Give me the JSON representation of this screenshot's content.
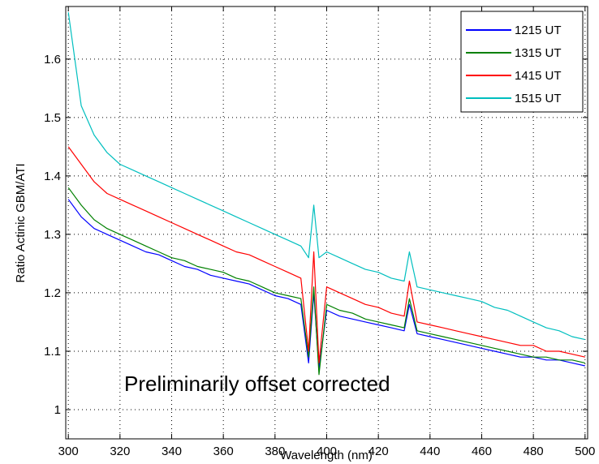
{
  "chart_data": {
    "type": "line",
    "xlabel": "Wavelength (nm)",
    "ylabel": "Ratio Actinic GBM/ATI",
    "xlim": [
      299,
      501
    ],
    "ylim": [
      0.95,
      1.69
    ],
    "x_ticks": [
      "300",
      "320",
      "340",
      "360",
      "380",
      "400",
      "420",
      "440",
      "460",
      "480",
      "500"
    ],
    "y_ticks": [
      "1",
      "1.1",
      "1.2",
      "1.3",
      "1.4",
      "1.5",
      "1.6"
    ],
    "grid": true,
    "legend_position": "top-right",
    "annotation": "Preliminarily offset corrected",
    "x": [
      300,
      305,
      310,
      315,
      320,
      325,
      330,
      335,
      340,
      345,
      350,
      355,
      360,
      365,
      370,
      375,
      380,
      385,
      390,
      393,
      395,
      397,
      400,
      405,
      410,
      415,
      420,
      425,
      430,
      432,
      435,
      440,
      445,
      450,
      455,
      460,
      465,
      470,
      475,
      480,
      485,
      490,
      495,
      500
    ],
    "series": [
      {
        "name": "1215 UT",
        "color": "#0000ff",
        "values": [
          1.36,
          1.33,
          1.31,
          1.3,
          1.29,
          1.28,
          1.27,
          1.265,
          1.255,
          1.245,
          1.24,
          1.23,
          1.225,
          1.22,
          1.215,
          1.205,
          1.195,
          1.19,
          1.18,
          1.08,
          1.2,
          1.07,
          1.17,
          1.16,
          1.155,
          1.15,
          1.145,
          1.14,
          1.135,
          1.18,
          1.13,
          1.125,
          1.12,
          1.115,
          1.11,
          1.105,
          1.1,
          1.095,
          1.09,
          1.09,
          1.085,
          1.085,
          1.08,
          1.075
        ]
      },
      {
        "name": "1315 UT",
        "color": "#008000",
        "values": [
          1.38,
          1.35,
          1.325,
          1.31,
          1.3,
          1.29,
          1.28,
          1.27,
          1.26,
          1.255,
          1.245,
          1.24,
          1.235,
          1.225,
          1.22,
          1.21,
          1.2,
          1.195,
          1.19,
          1.09,
          1.21,
          1.06,
          1.18,
          1.17,
          1.165,
          1.155,
          1.15,
          1.145,
          1.14,
          1.19,
          1.135,
          1.13,
          1.125,
          1.12,
          1.115,
          1.11,
          1.105,
          1.1,
          1.095,
          1.09,
          1.09,
          1.085,
          1.085,
          1.08
        ]
      },
      {
        "name": "1415 UT",
        "color": "#ff0000",
        "values": [
          1.45,
          1.42,
          1.39,
          1.37,
          1.36,
          1.35,
          1.34,
          1.33,
          1.32,
          1.31,
          1.3,
          1.29,
          1.28,
          1.27,
          1.265,
          1.255,
          1.245,
          1.235,
          1.225,
          1.1,
          1.27,
          1.08,
          1.21,
          1.2,
          1.19,
          1.18,
          1.175,
          1.165,
          1.16,
          1.22,
          1.15,
          1.145,
          1.14,
          1.135,
          1.13,
          1.125,
          1.12,
          1.115,
          1.11,
          1.11,
          1.1,
          1.1,
          1.095,
          1.09
        ]
      },
      {
        "name": "1515 UT",
        "color": "#00bfbf",
        "values": [
          1.68,
          1.52,
          1.47,
          1.44,
          1.42,
          1.41,
          1.4,
          1.39,
          1.38,
          1.37,
          1.36,
          1.35,
          1.34,
          1.33,
          1.32,
          1.31,
          1.3,
          1.29,
          1.28,
          1.26,
          1.35,
          1.26,
          1.27,
          1.26,
          1.25,
          1.24,
          1.235,
          1.225,
          1.22,
          1.27,
          1.21,
          1.205,
          1.2,
          1.195,
          1.19,
          1.185,
          1.175,
          1.17,
          1.16,
          1.15,
          1.14,
          1.135,
          1.125,
          1.12
        ]
      }
    ]
  }
}
